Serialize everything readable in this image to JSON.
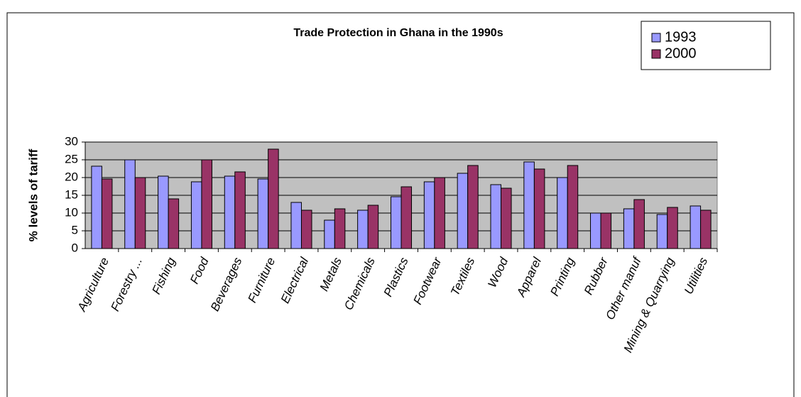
{
  "chart_data": {
    "type": "bar",
    "title": "Trade Protection in Ghana in the 1990s",
    "y_label": "% levels of tariff",
    "categories": [
      "Agriculture",
      "Forestry ...",
      "Fishing",
      "Food",
      "Beverages",
      "Furniture",
      "Electrical",
      "Metals",
      "Chemicals",
      "Plastics",
      "Footwear",
      "Textiles",
      "Wood",
      "Apparel",
      "Printing",
      "Rubber",
      "Other manuf",
      "Mining & Quarrying",
      "Utilities"
    ],
    "series": [
      {
        "name": "1993",
        "color": "#9999ff",
        "values": [
          23.2,
          25,
          20.4,
          18.8,
          20.4,
          19.6,
          13,
          8,
          10.8,
          14.6,
          18.8,
          21.2,
          18,
          24.4,
          20,
          10,
          11.2,
          9.6,
          12
        ]
      },
      {
        "name": "2000",
        "color": "#993366",
        "values": [
          19.6,
          20,
          14,
          25,
          21.6,
          28,
          10.8,
          11.2,
          12.2,
          17.4,
          20,
          23.4,
          17,
          22.4,
          23.4,
          10,
          13.8,
          11.6,
          10.8
        ]
      }
    ],
    "ylim": [
      0,
      30
    ],
    "yticks": [
      0,
      5,
      10,
      15,
      20,
      25,
      30
    ],
    "grid": true,
    "legend": "top-right"
  }
}
